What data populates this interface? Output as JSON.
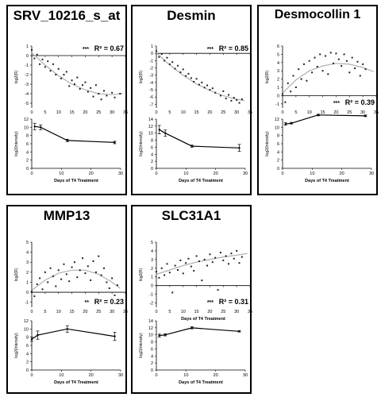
{
  "chart_data": [
    {
      "gene": "SRV_10216_s_at",
      "scatter": {
        "type": "scatter",
        "ylabel": "log2(R)",
        "xlabel": "",
        "xticks": [
          0,
          5,
          10,
          15,
          20,
          25,
          30,
          35
        ],
        "yticks": [
          1,
          0,
          -1,
          -2,
          -3,
          -4,
          -5
        ],
        "xlim": [
          0,
          35
        ],
        "ylim": [
          -5.5,
          1
        ],
        "significance": "***",
        "r2_label": "R² = 0.67",
        "points": [
          [
            0,
            0.6
          ],
          [
            1,
            -0.3
          ],
          [
            2,
            0.1
          ],
          [
            3,
            -0.9
          ],
          [
            4,
            -0.4
          ],
          [
            5,
            -1.2
          ],
          [
            6,
            -0.6
          ],
          [
            7,
            -1.6
          ],
          [
            8,
            -0.9
          ],
          [
            9,
            -2.0
          ],
          [
            10,
            -1.4
          ],
          [
            11,
            -2.4
          ],
          [
            12,
            -2.0
          ],
          [
            13,
            -1.7
          ],
          [
            14,
            -3.2
          ],
          [
            15,
            -2.6
          ],
          [
            16,
            -3.0
          ],
          [
            17,
            -2.3
          ],
          [
            18,
            -3.5
          ],
          [
            19,
            -3.1
          ],
          [
            20,
            -2.8
          ],
          [
            21,
            -3.8
          ],
          [
            22,
            -3.4
          ],
          [
            23,
            -4.3
          ],
          [
            24,
            -3.1
          ],
          [
            25,
            -4.0
          ],
          [
            26,
            -4.6
          ],
          [
            27,
            -3.7
          ],
          [
            28,
            -4.2
          ],
          [
            30,
            -3.9
          ],
          [
            31,
            -4.4
          ],
          [
            33,
            -4.0
          ]
        ],
        "fit": [
          [
            0,
            0.3
          ],
          [
            5,
            -1.0
          ],
          [
            10,
            -2.1
          ],
          [
            15,
            -3.0
          ],
          [
            20,
            -3.6
          ],
          [
            25,
            -4.0
          ],
          [
            30,
            -4.1
          ],
          [
            34,
            -4.0
          ]
        ]
      },
      "line": {
        "type": "line",
        "ylabel": "log2(Intensity)",
        "xlabel": "Days of T4 Treatment",
        "xticks": [
          0,
          10,
          20,
          30
        ],
        "yticks": [
          0,
          2,
          4,
          6,
          8,
          10,
          12
        ],
        "xlim": [
          0,
          30
        ],
        "ylim": [
          0,
          12
        ],
        "x": [
          1,
          3,
          12,
          28
        ],
        "y": [
          10.2,
          10.0,
          6.8,
          6.3
        ],
        "err": [
          0.8,
          0.6,
          0.3,
          0.3
        ]
      }
    },
    {
      "gene": "Desmin",
      "scatter": {
        "type": "scatter",
        "ylabel": "log2(R)",
        "xlabel": "",
        "xticks": [
          0,
          5,
          10,
          15,
          20,
          25,
          30,
          35
        ],
        "yticks": [
          1,
          0,
          -1,
          -2,
          -3,
          -4,
          -5,
          -6,
          -7
        ],
        "xlim": [
          0,
          35
        ],
        "ylim": [
          -7.5,
          1
        ],
        "significance": "***",
        "r2_label": "R² = 0.85",
        "points": [
          [
            0,
            0.3
          ],
          [
            1,
            -0.5
          ],
          [
            2,
            -0.1
          ],
          [
            3,
            -1.0
          ],
          [
            4,
            -0.6
          ],
          [
            5,
            -1.5
          ],
          [
            6,
            -1.2
          ],
          [
            7,
            -2.1
          ],
          [
            8,
            -1.7
          ],
          [
            9,
            -2.6
          ],
          [
            10,
            -2.2
          ],
          [
            11,
            -3.1
          ],
          [
            12,
            -2.8
          ],
          [
            13,
            -3.4
          ],
          [
            14,
            -3.9
          ],
          [
            15,
            -3.5
          ],
          [
            16,
            -4.3
          ],
          [
            17,
            -4.0
          ],
          [
            18,
            -4.7
          ],
          [
            19,
            -4.4
          ],
          [
            20,
            -5.0
          ],
          [
            21,
            -4.8
          ],
          [
            22,
            -5.4
          ],
          [
            24,
            -5.8
          ],
          [
            25,
            -5.2
          ],
          [
            26,
            -6.2
          ],
          [
            27,
            -5.7
          ],
          [
            28,
            -6.5
          ],
          [
            29,
            -6.1
          ],
          [
            30,
            -6.4
          ],
          [
            31,
            -6.8
          ],
          [
            32,
            -6.3
          ]
        ],
        "fit": [
          [
            0,
            0.1
          ],
          [
            5,
            -1.6
          ],
          [
            10,
            -3.0
          ],
          [
            15,
            -4.2
          ],
          [
            20,
            -5.1
          ],
          [
            25,
            -5.8
          ],
          [
            30,
            -6.3
          ],
          [
            33,
            -6.5
          ]
        ]
      },
      "line": {
        "type": "line",
        "ylabel": "log2(Intensity)",
        "xlabel": "Days of T4 Treatment",
        "xticks": [
          0,
          10,
          20,
          30
        ],
        "yticks": [
          0,
          2,
          4,
          6,
          8,
          10,
          12,
          14
        ],
        "xlim": [
          0,
          30
        ],
        "ylim": [
          0,
          14
        ],
        "x": [
          1,
          3,
          12,
          28
        ],
        "y": [
          11.0,
          10.0,
          6.3,
          5.8
        ],
        "err": [
          1.2,
          0.9,
          0.3,
          1.0
        ]
      }
    },
    {
      "gene": "Desmocollin 1",
      "scatter": {
        "type": "scatter",
        "ylabel": "log2(R)",
        "xlabel": "",
        "xticks": [
          0,
          5,
          10,
          15,
          20,
          25,
          30,
          35
        ],
        "yticks": [
          6,
          5,
          4,
          3,
          2,
          1,
          0,
          -1
        ],
        "xlim": [
          0,
          35
        ],
        "ylim": [
          -1.5,
          6
        ],
        "significance": "***",
        "r2_label": "R² = 0.39",
        "points": [
          [
            0,
            0.2
          ],
          [
            1,
            -0.8
          ],
          [
            2,
            1.5
          ],
          [
            3,
            0.5
          ],
          [
            4,
            2.4
          ],
          [
            5,
            1.0
          ],
          [
            6,
            3.2
          ],
          [
            7,
            2.0
          ],
          [
            8,
            3.8
          ],
          [
            9,
            1.8
          ],
          [
            10,
            4.2
          ],
          [
            11,
            2.8
          ],
          [
            12,
            4.6
          ],
          [
            13,
            3.5
          ],
          [
            14,
            5.0
          ],
          [
            15,
            3.0
          ],
          [
            16,
            4.8
          ],
          [
            17,
            2.6
          ],
          [
            18,
            5.2
          ],
          [
            19,
            3.9
          ],
          [
            20,
            5.1
          ],
          [
            21,
            4.4
          ],
          [
            22,
            3.6
          ],
          [
            23,
            5.0
          ],
          [
            24,
            4.2
          ],
          [
            25,
            2.8
          ],
          [
            26,
            4.6
          ],
          [
            27,
            3.3
          ],
          [
            28,
            4.1
          ],
          [
            29,
            2.4
          ],
          [
            30,
            3.8
          ],
          [
            31,
            3.2
          ]
        ],
        "fit": [
          [
            0,
            0.3
          ],
          [
            5,
            1.9
          ],
          [
            10,
            3.0
          ],
          [
            15,
            3.6
          ],
          [
            20,
            3.9
          ],
          [
            25,
            3.8
          ],
          [
            30,
            3.4
          ],
          [
            34,
            2.9
          ]
        ]
      },
      "line": {
        "type": "line",
        "ylabel": "log2(Intensity)",
        "xlabel": "Days of T4 Treatment",
        "xticks": [
          0,
          10,
          20,
          30
        ],
        "yticks": [
          0,
          2,
          4,
          6,
          8,
          10,
          12
        ],
        "xlim": [
          0,
          30
        ],
        "ylim": [
          0,
          12
        ],
        "x": [
          1,
          3,
          12,
          28
        ],
        "y": [
          10.8,
          11.0,
          13.0,
          12.8
        ],
        "err": [
          0.3,
          0.2,
          0.2,
          0.2
        ]
      }
    },
    {
      "gene": "MMP13",
      "scatter": {
        "type": "scatter",
        "ylabel": "log2(R)",
        "xlabel": "",
        "xticks": [
          0,
          5,
          10,
          15,
          20,
          25,
          30,
          35
        ],
        "yticks": [
          5,
          4,
          3,
          2,
          1,
          0,
          -1
        ],
        "xlim": [
          0,
          35
        ],
        "ylim": [
          -1.5,
          5
        ],
        "significance": "**",
        "r2_label": "R² = 0.23",
        "points": [
          [
            0,
            0.1
          ],
          [
            1,
            -0.4
          ],
          [
            2,
            0.8
          ],
          [
            3,
            1.4
          ],
          [
            4,
            0.3
          ],
          [
            5,
            2.0
          ],
          [
            6,
            1.0
          ],
          [
            7,
            2.4
          ],
          [
            8,
            1.6
          ],
          [
            9,
            0.6
          ],
          [
            10,
            2.2
          ],
          [
            11,
            1.3
          ],
          [
            12,
            2.8
          ],
          [
            13,
            1.8
          ],
          [
            14,
            1.1
          ],
          [
            15,
            2.5
          ],
          [
            16,
            3.0
          ],
          [
            17,
            1.5
          ],
          [
            18,
            2.2
          ],
          [
            19,
            3.4
          ],
          [
            20,
            1.9
          ],
          [
            21,
            2.6
          ],
          [
            22,
            1.2
          ],
          [
            23,
            3.1
          ],
          [
            24,
            2.0
          ],
          [
            25,
            3.6
          ],
          [
            26,
            1.7
          ],
          [
            27,
            2.4
          ],
          [
            28,
            1.0
          ],
          [
            29,
            0.4
          ],
          [
            30,
            1.4
          ],
          [
            31,
            -0.3
          ],
          [
            32,
            0.7
          ]
        ],
        "fit": [
          [
            0,
            0.2
          ],
          [
            5,
            1.2
          ],
          [
            10,
            1.9
          ],
          [
            15,
            2.2
          ],
          [
            20,
            2.2
          ],
          [
            25,
            1.8
          ],
          [
            30,
            1.0
          ],
          [
            33,
            0.4
          ]
        ]
      },
      "line": {
        "type": "line",
        "ylabel": "log2(Intensity)",
        "xlabel": "Days of T4 Treatment",
        "xticks": [
          0,
          10,
          20,
          30
        ],
        "yticks": [
          0,
          2,
          4,
          6,
          8,
          10,
          12
        ],
        "xlim": [
          0,
          30
        ],
        "ylim": [
          0,
          12
        ],
        "x": [
          0,
          2,
          12,
          28
        ],
        "y": [
          7.5,
          8.5,
          10.0,
          8.2
        ],
        "err": [
          0.5,
          1.0,
          0.8,
          1.0
        ]
      }
    },
    {
      "gene": "SLC31A1",
      "scatter": {
        "type": "scatter",
        "ylabel": "log2(R)",
        "xlabel": "Days of T4 Treatment",
        "xticks": [
          0,
          5,
          10,
          15,
          20,
          25,
          30,
          35
        ],
        "yticks": [
          5,
          4,
          3,
          2,
          1,
          0,
          -1,
          -2
        ],
        "xlim": [
          0,
          35
        ],
        "ylim": [
          -2.5,
          5
        ],
        "significance": "***",
        "r2_label": "R² = 0.31",
        "points": [
          [
            0,
            1.6
          ],
          [
            1,
            0.9
          ],
          [
            2,
            2.0
          ],
          [
            3,
            1.2
          ],
          [
            4,
            2.5
          ],
          [
            5,
            1.5
          ],
          [
            6,
            -0.8
          ],
          [
            7,
            2.3
          ],
          [
            8,
            1.8
          ],
          [
            9,
            2.9
          ],
          [
            10,
            1.4
          ],
          [
            11,
            2.6
          ],
          [
            12,
            3.1
          ],
          [
            13,
            2.2
          ],
          [
            14,
            1.7
          ],
          [
            15,
            3.4
          ],
          [
            16,
            2.8
          ],
          [
            17,
            0.6
          ],
          [
            18,
            3.0
          ],
          [
            19,
            2.3
          ],
          [
            20,
            3.6
          ],
          [
            21,
            2.7
          ],
          [
            22,
            3.2
          ],
          [
            23,
            -0.5
          ],
          [
            24,
            3.8
          ],
          [
            25,
            2.9
          ],
          [
            26,
            3.4
          ],
          [
            27,
            2.5
          ],
          [
            28,
            3.7
          ],
          [
            29,
            3.1
          ],
          [
            30,
            4.0
          ],
          [
            31,
            2.6
          ],
          [
            32,
            3.3
          ]
        ],
        "fit": [
          [
            0,
            1.3
          ],
          [
            5,
            1.8
          ],
          [
            10,
            2.3
          ],
          [
            15,
            2.7
          ],
          [
            20,
            3.0
          ],
          [
            25,
            3.3
          ],
          [
            30,
            3.5
          ],
          [
            34,
            3.7
          ]
        ]
      },
      "line": {
        "type": "line",
        "ylabel": "log2(Intensity)",
        "xlabel": "Days of T4 Treatment",
        "xticks": [
          0,
          10,
          20,
          30
        ],
        "yticks": [
          0,
          2,
          4,
          6,
          8,
          10,
          12,
          14
        ],
        "xlim": [
          0,
          30
        ],
        "ylim": [
          0,
          14
        ],
        "x": [
          1,
          3,
          12,
          28
        ],
        "y": [
          9.8,
          10.0,
          12.0,
          11.0
        ],
        "err": [
          0.4,
          0.3,
          0.3,
          0.2
        ]
      }
    }
  ]
}
